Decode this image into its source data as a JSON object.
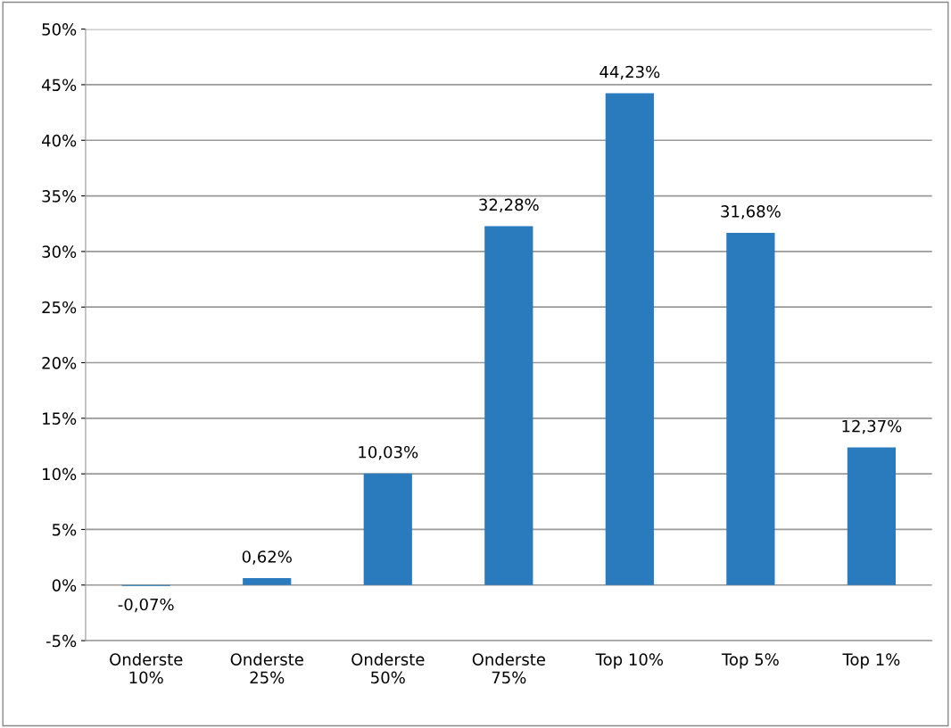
{
  "chart_data": {
    "type": "bar",
    "categories": [
      "Onderste\n10%",
      "Onderste\n25%",
      "Onderste\n50%",
      "Onderste\n75%",
      "Top 10%",
      "Top 5%",
      "Top 1%"
    ],
    "values": [
      -0.07,
      0.62,
      10.03,
      32.28,
      44.23,
      31.68,
      12.37
    ],
    "value_labels": [
      "-0,07%",
      "0,62%",
      "10,03%",
      "32,28%",
      "44,23%",
      "31,68%",
      "12,37%"
    ],
    "color": "#2a7bbd",
    "ylim": [
      -5,
      50
    ],
    "yticks": [
      {
        "value": -5,
        "label": "-5%"
      },
      {
        "value": 0,
        "label": "0%"
      },
      {
        "value": 5,
        "label": "5%"
      },
      {
        "value": 10,
        "label": "10%"
      },
      {
        "value": 15,
        "label": "15%"
      },
      {
        "value": 20,
        "label": "20%"
      },
      {
        "value": 25,
        "label": "25%"
      },
      {
        "value": 30,
        "label": "30%"
      },
      {
        "value": 35,
        "label": "35%"
      },
      {
        "value": 40,
        "label": "40%"
      },
      {
        "value": 45,
        "label": "45%"
      },
      {
        "value": 50,
        "label": "50%"
      }
    ],
    "grid": "y"
  }
}
